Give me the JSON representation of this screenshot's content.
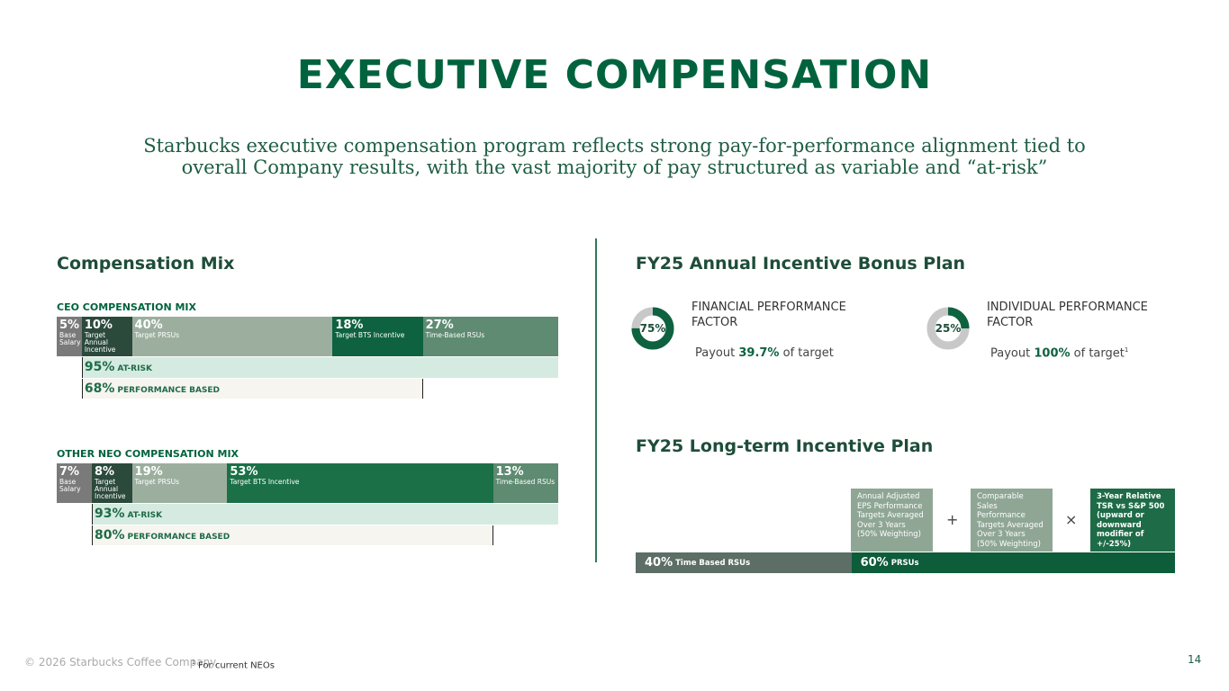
{
  "title": "EXECUTIVE COMPENSATION",
  "subtitle_lines": [
    "Starbucks executive compensation program reflects strong pay-for-performance alignment tied to",
    "overall Company results, with the vast majority of pay structured as variable and “at-risk”"
  ],
  "compensation_mix": {
    "heading": "Compensation Mix",
    "mixes": [
      {
        "title": "CEO COMPENSATION MIX",
        "segments": [
          {
            "value": 5,
            "label": "5%",
            "name": "Base Salary"
          },
          {
            "value": 10,
            "label": "10%",
            "name": "Target Annual Incentive"
          },
          {
            "value": 40,
            "label": "40%",
            "name": "Target PRSUs"
          },
          {
            "value": 18,
            "label": "18%",
            "name": "Target BTS Incentive"
          },
          {
            "value": 27,
            "label": "27%",
            "name": "Time-Based RSUs"
          }
        ],
        "at_risk": {
          "value": 95,
          "label": "95%",
          "text": "AT-RISK"
        },
        "performance_based": {
          "value": 68,
          "label": "68%",
          "text": "PERFORMANCE BASED"
        }
      },
      {
        "title": "OTHER NEO COMPENSATION MIX",
        "segments": [
          {
            "value": 7,
            "label": "7%",
            "name": "Base Salary"
          },
          {
            "value": 8,
            "label": "8%",
            "name": "Target Annual Incentive"
          },
          {
            "value": 19,
            "label": "19%",
            "name": "Target PRSUs"
          },
          {
            "value": 53,
            "label": "53%",
            "name": "Target BTS Incentive"
          },
          {
            "value": 13,
            "label": "13%",
            "name": "Time-Based RSUs"
          }
        ],
        "at_risk": {
          "value": 93,
          "label": "93%",
          "text": "AT-RISK"
        },
        "performance_based": {
          "value": 80,
          "label": "80%",
          "text": "PERFORMANCE BASED"
        }
      }
    ]
  },
  "annual_bonus": {
    "heading": "FY25 Annual Incentive Bonus Plan",
    "factors": [
      {
        "donut": {
          "value": 75,
          "label": "75%"
        },
        "name": "FINANCIAL PERFORMANCE FACTOR",
        "payout_prefix": "Payout",
        "payout_value": "39.7%",
        "payout_suffix": "of target",
        "footnote_mark": null
      },
      {
        "donut": {
          "value": 25,
          "label": "25%"
        },
        "name": "INDIVIDUAL PERFORMANCE FACTOR",
        "payout_prefix": "Payout",
        "payout_value": "100%",
        "payout_suffix": "of target",
        "footnote_mark": "1"
      }
    ]
  },
  "long_term": {
    "heading": "FY25 Long-term Incentive Plan",
    "boxes": [
      "Annual Adjusted EPS Performance Targets Averaged Over 3 Years (50% Weighting)",
      "Comparable Sales Performance Targets Averaged Over 3 Years (50% Weighting)",
      "3-Year Relative TSR vs S&P 500 (upward or downward modifier of +/-25%)"
    ],
    "operators": [
      "+",
      "×"
    ],
    "bar": [
      {
        "value": 40,
        "label": "40%",
        "name": "Time Based RSUs"
      },
      {
        "value": 60,
        "label": "60%",
        "name": "PRSUs"
      }
    ]
  },
  "footer": {
    "copyright": "© 2026 Starbucks Coffee Company.",
    "footnote_mark": "1",
    "footnote": "For current NEOs",
    "page_number": "14"
  }
}
